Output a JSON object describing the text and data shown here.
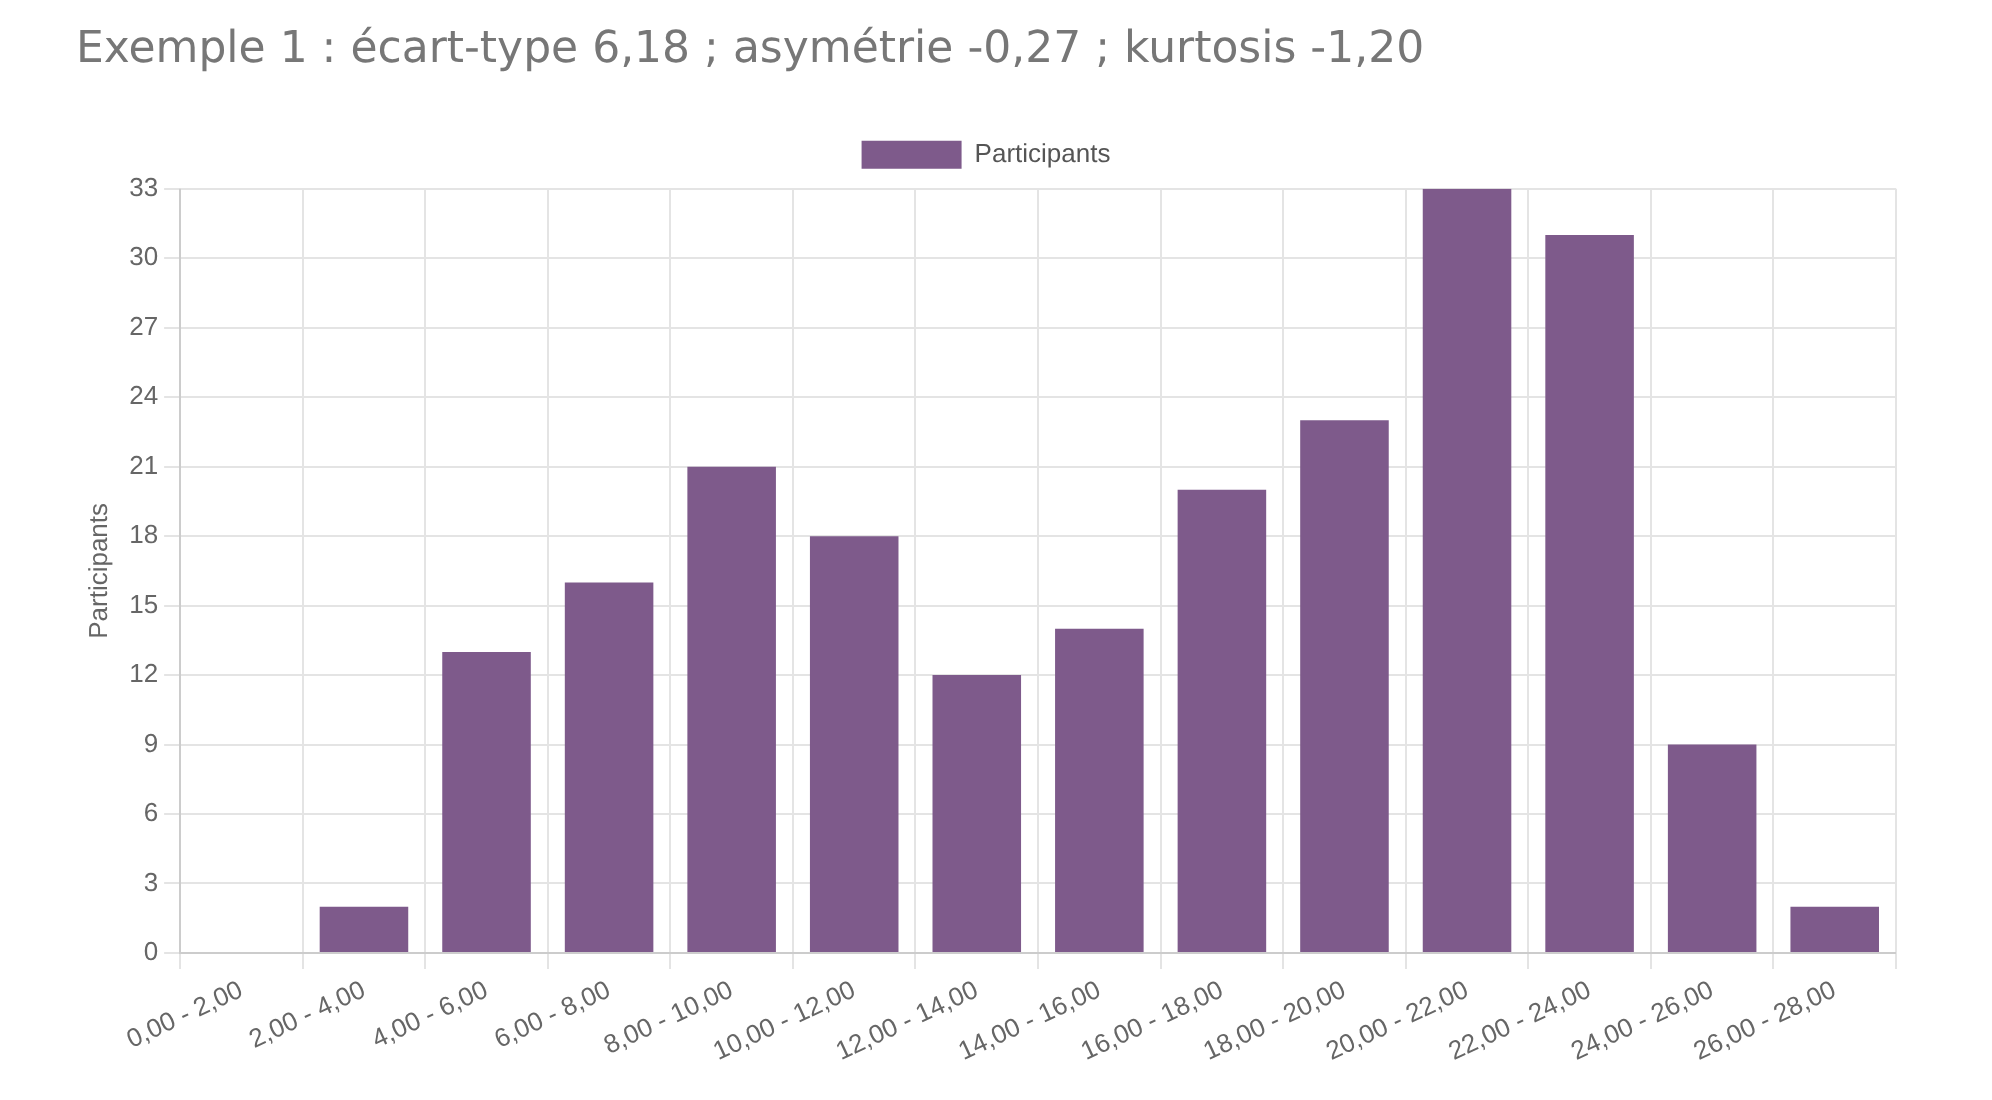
{
  "chart_data": {
    "type": "bar",
    "title": "Exemple 1 : écart-type 6,18 ; asymétrie -0,27 ; kurtosis -1,20",
    "ylabel": "Participants",
    "categories": [
      "0,00 - 2,00",
      "2,00 - 4,00",
      "4,00 - 6,00",
      "6,00 - 8,00",
      "8,00 - 10,00",
      "10,00 - 12,00",
      "12,00 - 14,00",
      "14,00 - 16,00",
      "16,00 - 18,00",
      "18,00 - 20,00",
      "20,00 - 22,00",
      "22,00 - 24,00",
      "24,00 - 26,00",
      "26,00 - 28,00"
    ],
    "series": [
      {
        "name": "Participants",
        "color": "#7e5a8b",
        "values": [
          0,
          2,
          13,
          16,
          21,
          18,
          12,
          14,
          20,
          23,
          33,
          31,
          9,
          2
        ]
      }
    ],
    "ylim": [
      0,
      33
    ],
    "yticks": [
      0,
      3,
      6,
      9,
      12,
      15,
      18,
      21,
      24,
      27,
      30,
      33
    ],
    "grid": true,
    "legend": "top"
  }
}
